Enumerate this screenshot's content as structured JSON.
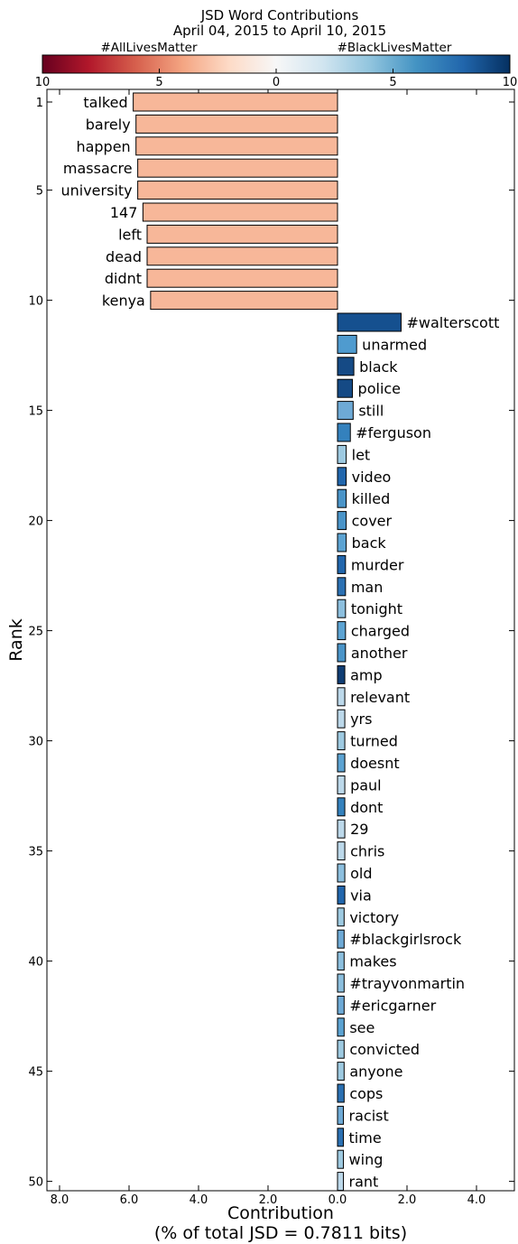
{
  "chart_data": {
    "type": "bar",
    "title": "JSD Word Contributions",
    "subtitle": "April 04, 2015 to April 10, 2015",
    "colorbar": {
      "left_label": "#AllLivesMatter",
      "right_label": "#BlackLivesMatter",
      "tick_labels": [
        "10",
        "5",
        "0",
        "5",
        "10"
      ],
      "range": [
        -10,
        10
      ]
    },
    "xlabel": "Contribution",
    "xlabel_sub": "(% of total JSD = 0.7811 bits)",
    "ylabel": "Rank",
    "xlim": [
      -8.4,
      5.0
    ],
    "xticks": [
      -8.0,
      -6.0,
      -4.0,
      -2.0,
      0.0,
      2.0,
      4.0
    ],
    "xtick_labels": [
      "8.0",
      "6.0",
      "4.0",
      "2.0",
      "0.0",
      "2.0",
      "4.0"
    ],
    "yticks": [
      1,
      5,
      10,
      15,
      20,
      25,
      30,
      35,
      40,
      45,
      50
    ],
    "ytick_labels": [
      "1",
      "5",
      "10",
      "15",
      "20",
      "25",
      "30",
      "35",
      "40",
      "45",
      "50"
    ],
    "bars": [
      {
        "rank": 1,
        "word": "talked",
        "value": -5.88,
        "color": "#f7b799"
      },
      {
        "rank": 2,
        "word": "barely",
        "value": -5.8,
        "color": "#f7b799"
      },
      {
        "rank": 3,
        "word": "happen",
        "value": -5.8,
        "color": "#f7b799"
      },
      {
        "rank": 4,
        "word": "massacre",
        "value": -5.75,
        "color": "#f7b799"
      },
      {
        "rank": 5,
        "word": "university",
        "value": -5.75,
        "color": "#f7b799"
      },
      {
        "rank": 6,
        "word": "147",
        "value": -5.6,
        "color": "#f7b799"
      },
      {
        "rank": 7,
        "word": "left",
        "value": -5.48,
        "color": "#f7b799"
      },
      {
        "rank": 8,
        "word": "dead",
        "value": -5.48,
        "color": "#f7b799"
      },
      {
        "rank": 9,
        "word": "didnt",
        "value": -5.48,
        "color": "#f7b799"
      },
      {
        "rank": 10,
        "word": "kenya",
        "value": -5.38,
        "color": "#f7b799"
      },
      {
        "rank": 11,
        "word": "#walterscott",
        "value": 1.83,
        "color": "#15508f"
      },
      {
        "rank": 12,
        "word": "unarmed",
        "value": 0.55,
        "color": "#4f9bcf"
      },
      {
        "rank": 13,
        "word": "black",
        "value": 0.47,
        "color": "#154a85"
      },
      {
        "rank": 14,
        "word": "police",
        "value": 0.43,
        "color": "#154a85"
      },
      {
        "rank": 15,
        "word": "still",
        "value": 0.45,
        "color": "#6eaad6"
      },
      {
        "rank": 16,
        "word": "#ferguson",
        "value": 0.37,
        "color": "#3481bd"
      },
      {
        "rank": 17,
        "word": "let",
        "value": 0.25,
        "color": "#9ecae1"
      },
      {
        "rank": 18,
        "word": "video",
        "value": 0.25,
        "color": "#2166ac"
      },
      {
        "rank": 19,
        "word": "killed",
        "value": 0.25,
        "color": "#4a94c8"
      },
      {
        "rank": 20,
        "word": "cover",
        "value": 0.25,
        "color": "#4a94c8"
      },
      {
        "rank": 21,
        "word": "back",
        "value": 0.25,
        "color": "#5ca3d2"
      },
      {
        "rank": 22,
        "word": "murder",
        "value": 0.23,
        "color": "#2166ac"
      },
      {
        "rank": 23,
        "word": "man",
        "value": 0.23,
        "color": "#2b70b2"
      },
      {
        "rank": 24,
        "word": "tonight",
        "value": 0.23,
        "color": "#8cbfde"
      },
      {
        "rank": 25,
        "word": "charged",
        "value": 0.23,
        "color": "#5ca3d2"
      },
      {
        "rank": 26,
        "word": "another",
        "value": 0.23,
        "color": "#4a94c8"
      },
      {
        "rank": 27,
        "word": "amp",
        "value": 0.21,
        "color": "#0f3d73"
      },
      {
        "rank": 28,
        "word": "relevant",
        "value": 0.21,
        "color": "#bcd8ea"
      },
      {
        "rank": 29,
        "word": "yrs",
        "value": 0.21,
        "color": "#bcd8ea"
      },
      {
        "rank": 30,
        "word": "turned",
        "value": 0.21,
        "color": "#9ecae1"
      },
      {
        "rank": 31,
        "word": "doesnt",
        "value": 0.21,
        "color": "#5ca3d2"
      },
      {
        "rank": 32,
        "word": "paul",
        "value": 0.21,
        "color": "#bcd8ea"
      },
      {
        "rank": 33,
        "word": "dont",
        "value": 0.21,
        "color": "#3481bd"
      },
      {
        "rank": 34,
        "word": "29",
        "value": 0.21,
        "color": "#bcd8ea"
      },
      {
        "rank": 35,
        "word": "chris",
        "value": 0.21,
        "color": "#bcd8ea"
      },
      {
        "rank": 36,
        "word": "old",
        "value": 0.21,
        "color": "#8cbfde"
      },
      {
        "rank": 37,
        "word": "via",
        "value": 0.21,
        "color": "#2166ac"
      },
      {
        "rank": 38,
        "word": "victory",
        "value": 0.19,
        "color": "#9ecae1"
      },
      {
        "rank": 39,
        "word": "#blackgirlsrock",
        "value": 0.19,
        "color": "#6eaad6"
      },
      {
        "rank": 40,
        "word": "makes",
        "value": 0.19,
        "color": "#8cbfde"
      },
      {
        "rank": 41,
        "word": "#trayvonmartin",
        "value": 0.19,
        "color": "#8cbfde"
      },
      {
        "rank": 42,
        "word": "#ericgarner",
        "value": 0.19,
        "color": "#6eaad6"
      },
      {
        "rank": 43,
        "word": "see",
        "value": 0.19,
        "color": "#5ca3d2"
      },
      {
        "rank": 44,
        "word": "convicted",
        "value": 0.19,
        "color": "#9ecae1"
      },
      {
        "rank": 45,
        "word": "anyone",
        "value": 0.19,
        "color": "#9ecae1"
      },
      {
        "rank": 46,
        "word": "cops",
        "value": 0.19,
        "color": "#2b70b2"
      },
      {
        "rank": 47,
        "word": "racist",
        "value": 0.17,
        "color": "#6eaad6"
      },
      {
        "rank": 48,
        "word": "time",
        "value": 0.17,
        "color": "#2b70b2"
      },
      {
        "rank": 49,
        "word": "wing",
        "value": 0.17,
        "color": "#9ecae1"
      },
      {
        "rank": 50,
        "word": "rant",
        "value": 0.17,
        "color": "#bcd8ea"
      }
    ]
  }
}
